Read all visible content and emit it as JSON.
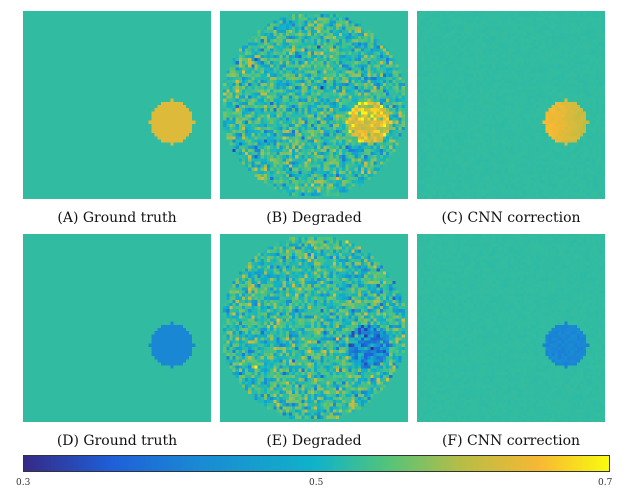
{
  "panels": [
    {
      "id": "A",
      "caption": "(A) Ground truth",
      "kind": "truth",
      "target": "high"
    },
    {
      "id": "B",
      "caption": "(B) Degraded",
      "kind": "degraded",
      "target": "high"
    },
    {
      "id": "C",
      "caption": "(C) CNN correction",
      "kind": "corrected",
      "target": "high"
    },
    {
      "id": "D",
      "caption": "(D) Ground truth",
      "kind": "truth",
      "target": "low"
    },
    {
      "id": "E",
      "caption": "(E) Degraded",
      "kind": "degraded",
      "target": "low"
    },
    {
      "id": "F",
      "caption": "(F) CNN correction",
      "kind": "corrected",
      "target": "low"
    }
  ],
  "colorbar": {
    "min": "0.3",
    "mid": "0.5",
    "max": "0.7",
    "colors": [
      "#352a87",
      "#1f5fd8",
      "#1a8ad4",
      "#10b3c8",
      "#52c47a",
      "#b8bd45",
      "#f7b833",
      "#f9fb0e"
    ]
  },
  "values": {
    "background": 0.5,
    "target_high": 0.62,
    "target_low": 0.41
  }
}
